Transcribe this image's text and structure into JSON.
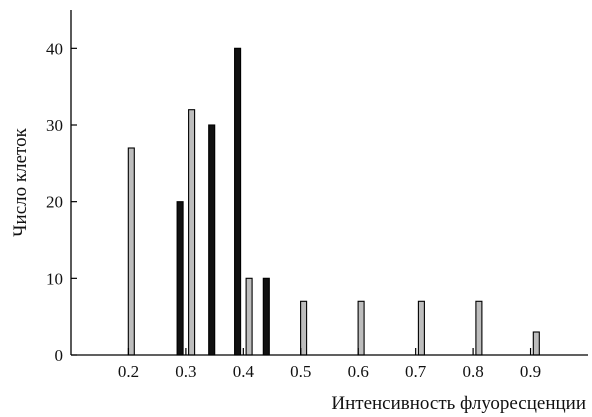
{
  "chart_data": {
    "type": "bar",
    "xlabel": "Интенсивность флуоресценции",
    "ylabel": "Число клеток",
    "xlim": [
      0.1,
      1.0
    ],
    "ylim": [
      0,
      45
    ],
    "x_ticks": [
      {
        "value": 0.2,
        "label": "0.2"
      },
      {
        "value": 0.3,
        "label": "0.3"
      },
      {
        "value": 0.4,
        "label": "0.4"
      },
      {
        "value": 0.5,
        "label": "0.5"
      },
      {
        "value": 0.6,
        "label": "0.6"
      },
      {
        "value": 0.7,
        "label": "0.7"
      },
      {
        "value": 0.8,
        "label": "0.8"
      },
      {
        "value": 0.9,
        "label": "0.9"
      }
    ],
    "y_ticks": [
      {
        "value": 0,
        "label": "0"
      },
      {
        "value": 10,
        "label": "10"
      },
      {
        "value": 20,
        "label": "20"
      },
      {
        "value": 30,
        "label": "30"
      },
      {
        "value": 40,
        "label": "40"
      }
    ],
    "grid": false,
    "legend": "none",
    "series": [
      {
        "color": "#111111",
        "points": [
          {
            "x": 0.29,
            "y": 20
          },
          {
            "x": 0.345,
            "y": 30
          },
          {
            "x": 0.39,
            "y": 40
          },
          {
            "x": 0.44,
            "y": 10
          }
        ]
      },
      {
        "color": "#bdbdbd",
        "points": [
          {
            "x": 0.205,
            "y": 27
          },
          {
            "x": 0.31,
            "y": 32
          },
          {
            "x": 0.41,
            "y": 10
          },
          {
            "x": 0.505,
            "y": 7
          },
          {
            "x": 0.605,
            "y": 7
          },
          {
            "x": 0.71,
            "y": 7
          },
          {
            "x": 0.81,
            "y": 7
          },
          {
            "x": 0.91,
            "y": 3
          }
        ]
      }
    ]
  }
}
